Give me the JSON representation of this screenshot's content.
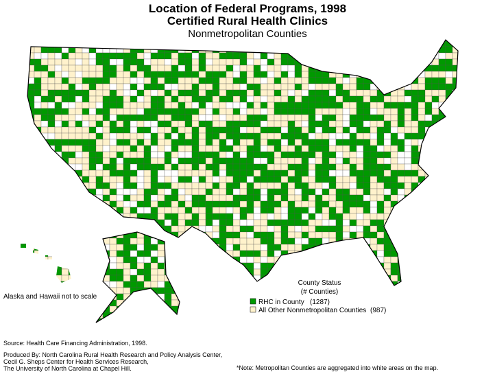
{
  "header": {
    "title_line1": "Location of Federal Programs, 1998",
    "title_line2": "Certified Rural Health Clinics",
    "subtitle": "Nonmetropolitan Counties"
  },
  "map": {
    "inset_note": "Alaska and Hawaii not to scale"
  },
  "legend": {
    "title_line1": "County Status",
    "title_line2": "(# Counties)",
    "items": [
      {
        "label": "RHC in County",
        "count": "(1287)",
        "color": "#009900"
      },
      {
        "label": "All Other Nonmetropolitan Counties",
        "count": "(987)",
        "color": "#fff2cc"
      }
    ]
  },
  "footer": {
    "source": "Source: Health Care Financing Administration, 1998.",
    "produced_by": [
      "Produced By:  North Carolina Rural Health Research and Policy Analysis Center,",
      "Cecil G. Sheps Center for Health Services Research,",
      "The University of North Carolina at Chapel Hill."
    ],
    "note": "*Note:  Metropolitan Counties are aggregated into white areas on the map."
  }
}
